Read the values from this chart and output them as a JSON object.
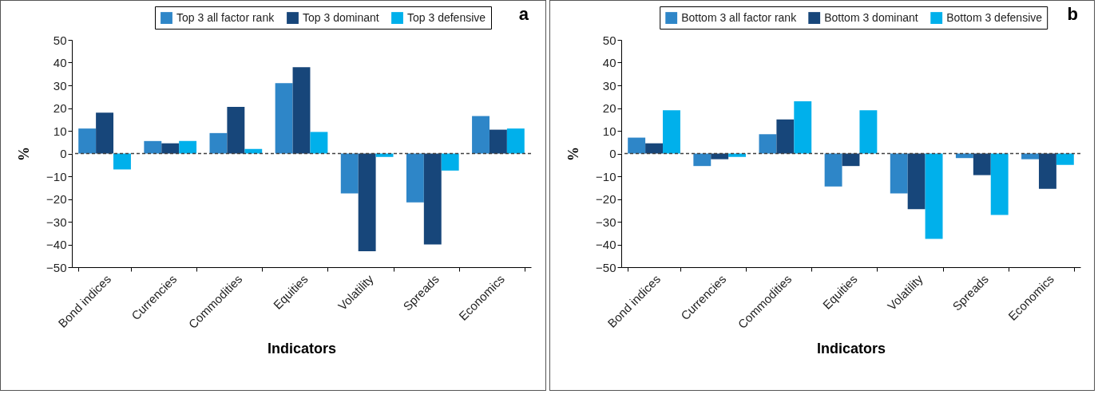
{
  "chart_data": [
    {
      "type": "bar",
      "categories": [
        "Bond indices",
        "Currencies",
        "Commodities",
        "Equities",
        "Volatility",
        "Spreads",
        "Economics"
      ],
      "series": [
        {
          "name": "Top 3 all factor rank",
          "color": "#2e86c8",
          "values": [
            11,
            5.5,
            9,
            31,
            -17.5,
            -21.5,
            16.5
          ]
        },
        {
          "name": "Top 3 dominant",
          "color": "#17467a",
          "values": [
            18,
            4.5,
            20.5,
            38,
            -43,
            -40,
            10.5
          ]
        },
        {
          "name": "Top 3 defensive",
          "color": "#00b0eb",
          "values": [
            -7,
            5.5,
            2,
            9.5,
            -1.5,
            -7.5,
            11
          ]
        }
      ],
      "xlabel": "Indicators",
      "ylabel": "%",
      "ylim": [
        -50,
        50
      ],
      "yticks": [
        -50,
        -40,
        -30,
        -20,
        -10,
        0,
        10,
        20,
        30,
        40,
        50
      ],
      "legend": "top right",
      "ref_lines": [
        {
          "axis": "y",
          "value": 0,
          "line_style": "dashed",
          "color": "#404040"
        }
      ],
      "annotations": [
        "a"
      ]
    },
    {
      "type": "bar",
      "categories": [
        "Bond indices",
        "Currencies",
        "Commodities",
        "Equities",
        "Volatility",
        "Spreads",
        "Economics"
      ],
      "series": [
        {
          "name": "Bottom 3 all factor rank",
          "color": "#2e86c8",
          "values": [
            7,
            -5.5,
            8.5,
            -14.5,
            -17.5,
            -2,
            -2.5
          ]
        },
        {
          "name": "Bottom 3 dominant",
          "color": "#17467a",
          "values": [
            4.5,
            -2.5,
            15,
            -5.5,
            -24.5,
            -9.5,
            -15.5
          ]
        },
        {
          "name": "Bottom 3 defensive",
          "color": "#00b0eb",
          "values": [
            19,
            -1.5,
            23,
            19,
            -37.5,
            -27,
            -5
          ]
        }
      ],
      "xlabel": "Indicators",
      "ylabel": "%",
      "ylim": [
        -50,
        50
      ],
      "yticks": [
        -50,
        -40,
        -30,
        -20,
        -10,
        0,
        10,
        20,
        30,
        40,
        50
      ],
      "legend": "top right",
      "ref_lines": [
        {
          "axis": "y",
          "value": 0,
          "line_style": "dashed",
          "color": "#404040"
        }
      ],
      "annotations": [
        "b"
      ]
    }
  ]
}
